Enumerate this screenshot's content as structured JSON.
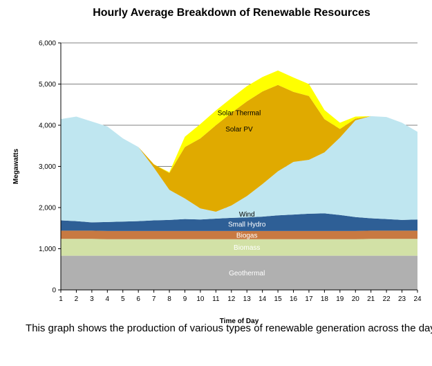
{
  "chart_data": {
    "type": "area",
    "stacked": true,
    "title": "Hourly Average Breakdown of Renewable Resources",
    "xlabel": "Time of Day",
    "ylabel": "Megawatts",
    "ylim": [
      0,
      6000
    ],
    "yticks": [
      "0",
      "1,000",
      "2,000",
      "3,000",
      "4,000",
      "5,000",
      "6,000"
    ],
    "x": [
      1,
      2,
      3,
      4,
      5,
      6,
      7,
      8,
      9,
      10,
      11,
      12,
      13,
      14,
      15,
      16,
      17,
      18,
      19,
      20,
      21,
      22,
      23,
      24
    ],
    "grid": true,
    "series": [
      {
        "name": "Geothermal",
        "color": "#b0b0b0",
        "label_color": "#ffffff",
        "values": [
          830,
          830,
          830,
          830,
          830,
          830,
          830,
          830,
          830,
          830,
          830,
          830,
          830,
          830,
          830,
          830,
          830,
          830,
          830,
          830,
          830,
          830,
          830,
          830
        ]
      },
      {
        "name": "Biomass",
        "color": "#d2e1a6",
        "label_color": "#ffffff",
        "values": [
          410,
          410,
          410,
          400,
          400,
          400,
          400,
          400,
          400,
          400,
          400,
          400,
          400,
          400,
          400,
          400,
          400,
          400,
          400,
          400,
          410,
          410,
          410,
          410
        ]
      },
      {
        "name": "Biogas",
        "color": "#c87941",
        "label_color": "#ffffff",
        "values": [
          200,
          200,
          200,
          200,
          200,
          200,
          200,
          200,
          200,
          200,
          200,
          200,
          200,
          200,
          200,
          200,
          200,
          200,
          200,
          200,
          200,
          200,
          200,
          200
        ]
      },
      {
        "name": "Small Hydro",
        "color": "#2e5f96",
        "label_color": "#ffffff",
        "values": [
          250,
          230,
          200,
          220,
          230,
          240,
          260,
          270,
          290,
          280,
          300,
          320,
          330,
          350,
          380,
          400,
          420,
          430,
          390,
          340,
          300,
          280,
          260,
          270
        ]
      },
      {
        "name": "Wind",
        "color": "#bfe6f0",
        "label_color": "#000000",
        "values": [
          2460,
          2540,
          2450,
          2320,
          2020,
          1800,
          1280,
          730,
          500,
          270,
          170,
          300,
          520,
          790,
          1070,
          1280,
          1310,
          1480,
          1880,
          2350,
          2480,
          2480,
          2360,
          2130
        ]
      },
      {
        "name": "Solar PV",
        "color": "#e0aa00",
        "label_color": "#000000",
        "values": [
          0,
          0,
          0,
          0,
          0,
          0,
          80,
          410,
          1250,
          1700,
          2100,
          2250,
          2300,
          2250,
          2100,
          1700,
          1550,
          810,
          210,
          40,
          0,
          0,
          0,
          0
        ]
      },
      {
        "name": "Solar Thermal",
        "color": "#ffff00",
        "label_color": "#000000",
        "values": [
          0,
          0,
          0,
          0,
          0,
          0,
          0,
          20,
          250,
          350,
          360,
          360,
          370,
          350,
          350,
          350,
          290,
          220,
          150,
          50,
          0,
          0,
          0,
          0
        ]
      }
    ],
    "series_labels_order": [
      "Geothermal",
      "Biomass",
      "Biogas",
      "Small Hydro",
      "Wind",
      "Solar PV",
      "Solar Thermal"
    ]
  },
  "caption": "This graph shows the production of various types of renewable generation across the day."
}
